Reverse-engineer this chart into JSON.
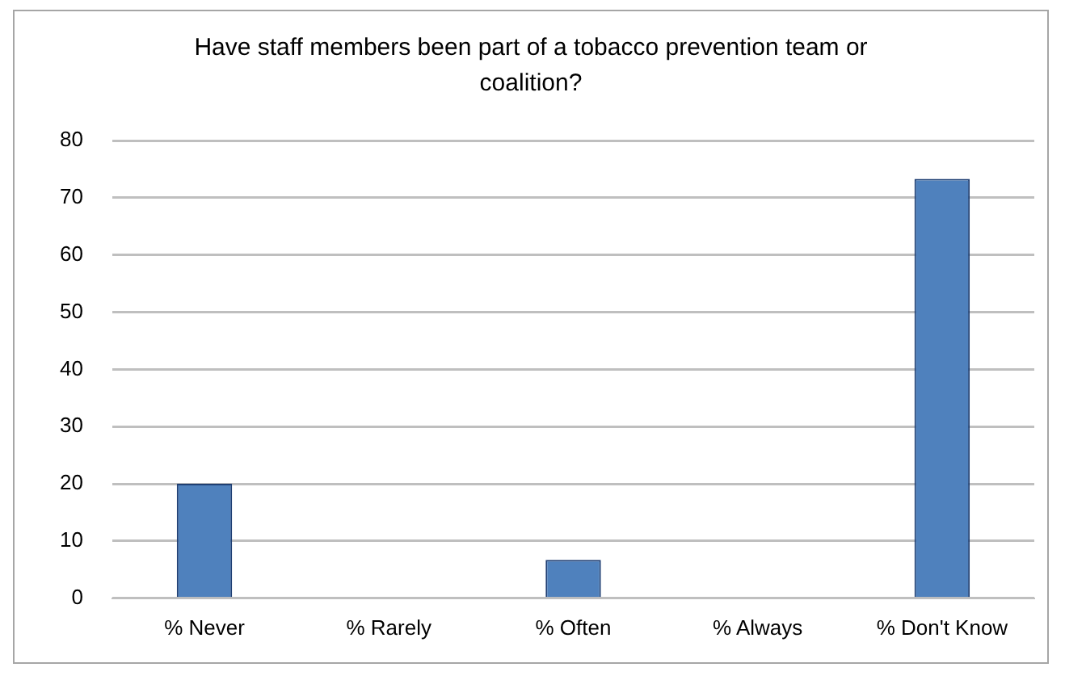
{
  "chart_data": {
    "type": "bar",
    "title": "Have staff members been part of a tobacco prevention team or coalition?",
    "categories": [
      "% Never",
      "% Rarely",
      "% Often",
      "% Always",
      "% Don't Know"
    ],
    "values": [
      20,
      0,
      6.7,
      0,
      73.3
    ],
    "color": "#4f81bd",
    "ylim": [
      0,
      80
    ],
    "yticks": [
      0,
      10,
      20,
      30,
      40,
      50,
      60,
      70,
      80
    ],
    "grid": "y"
  }
}
